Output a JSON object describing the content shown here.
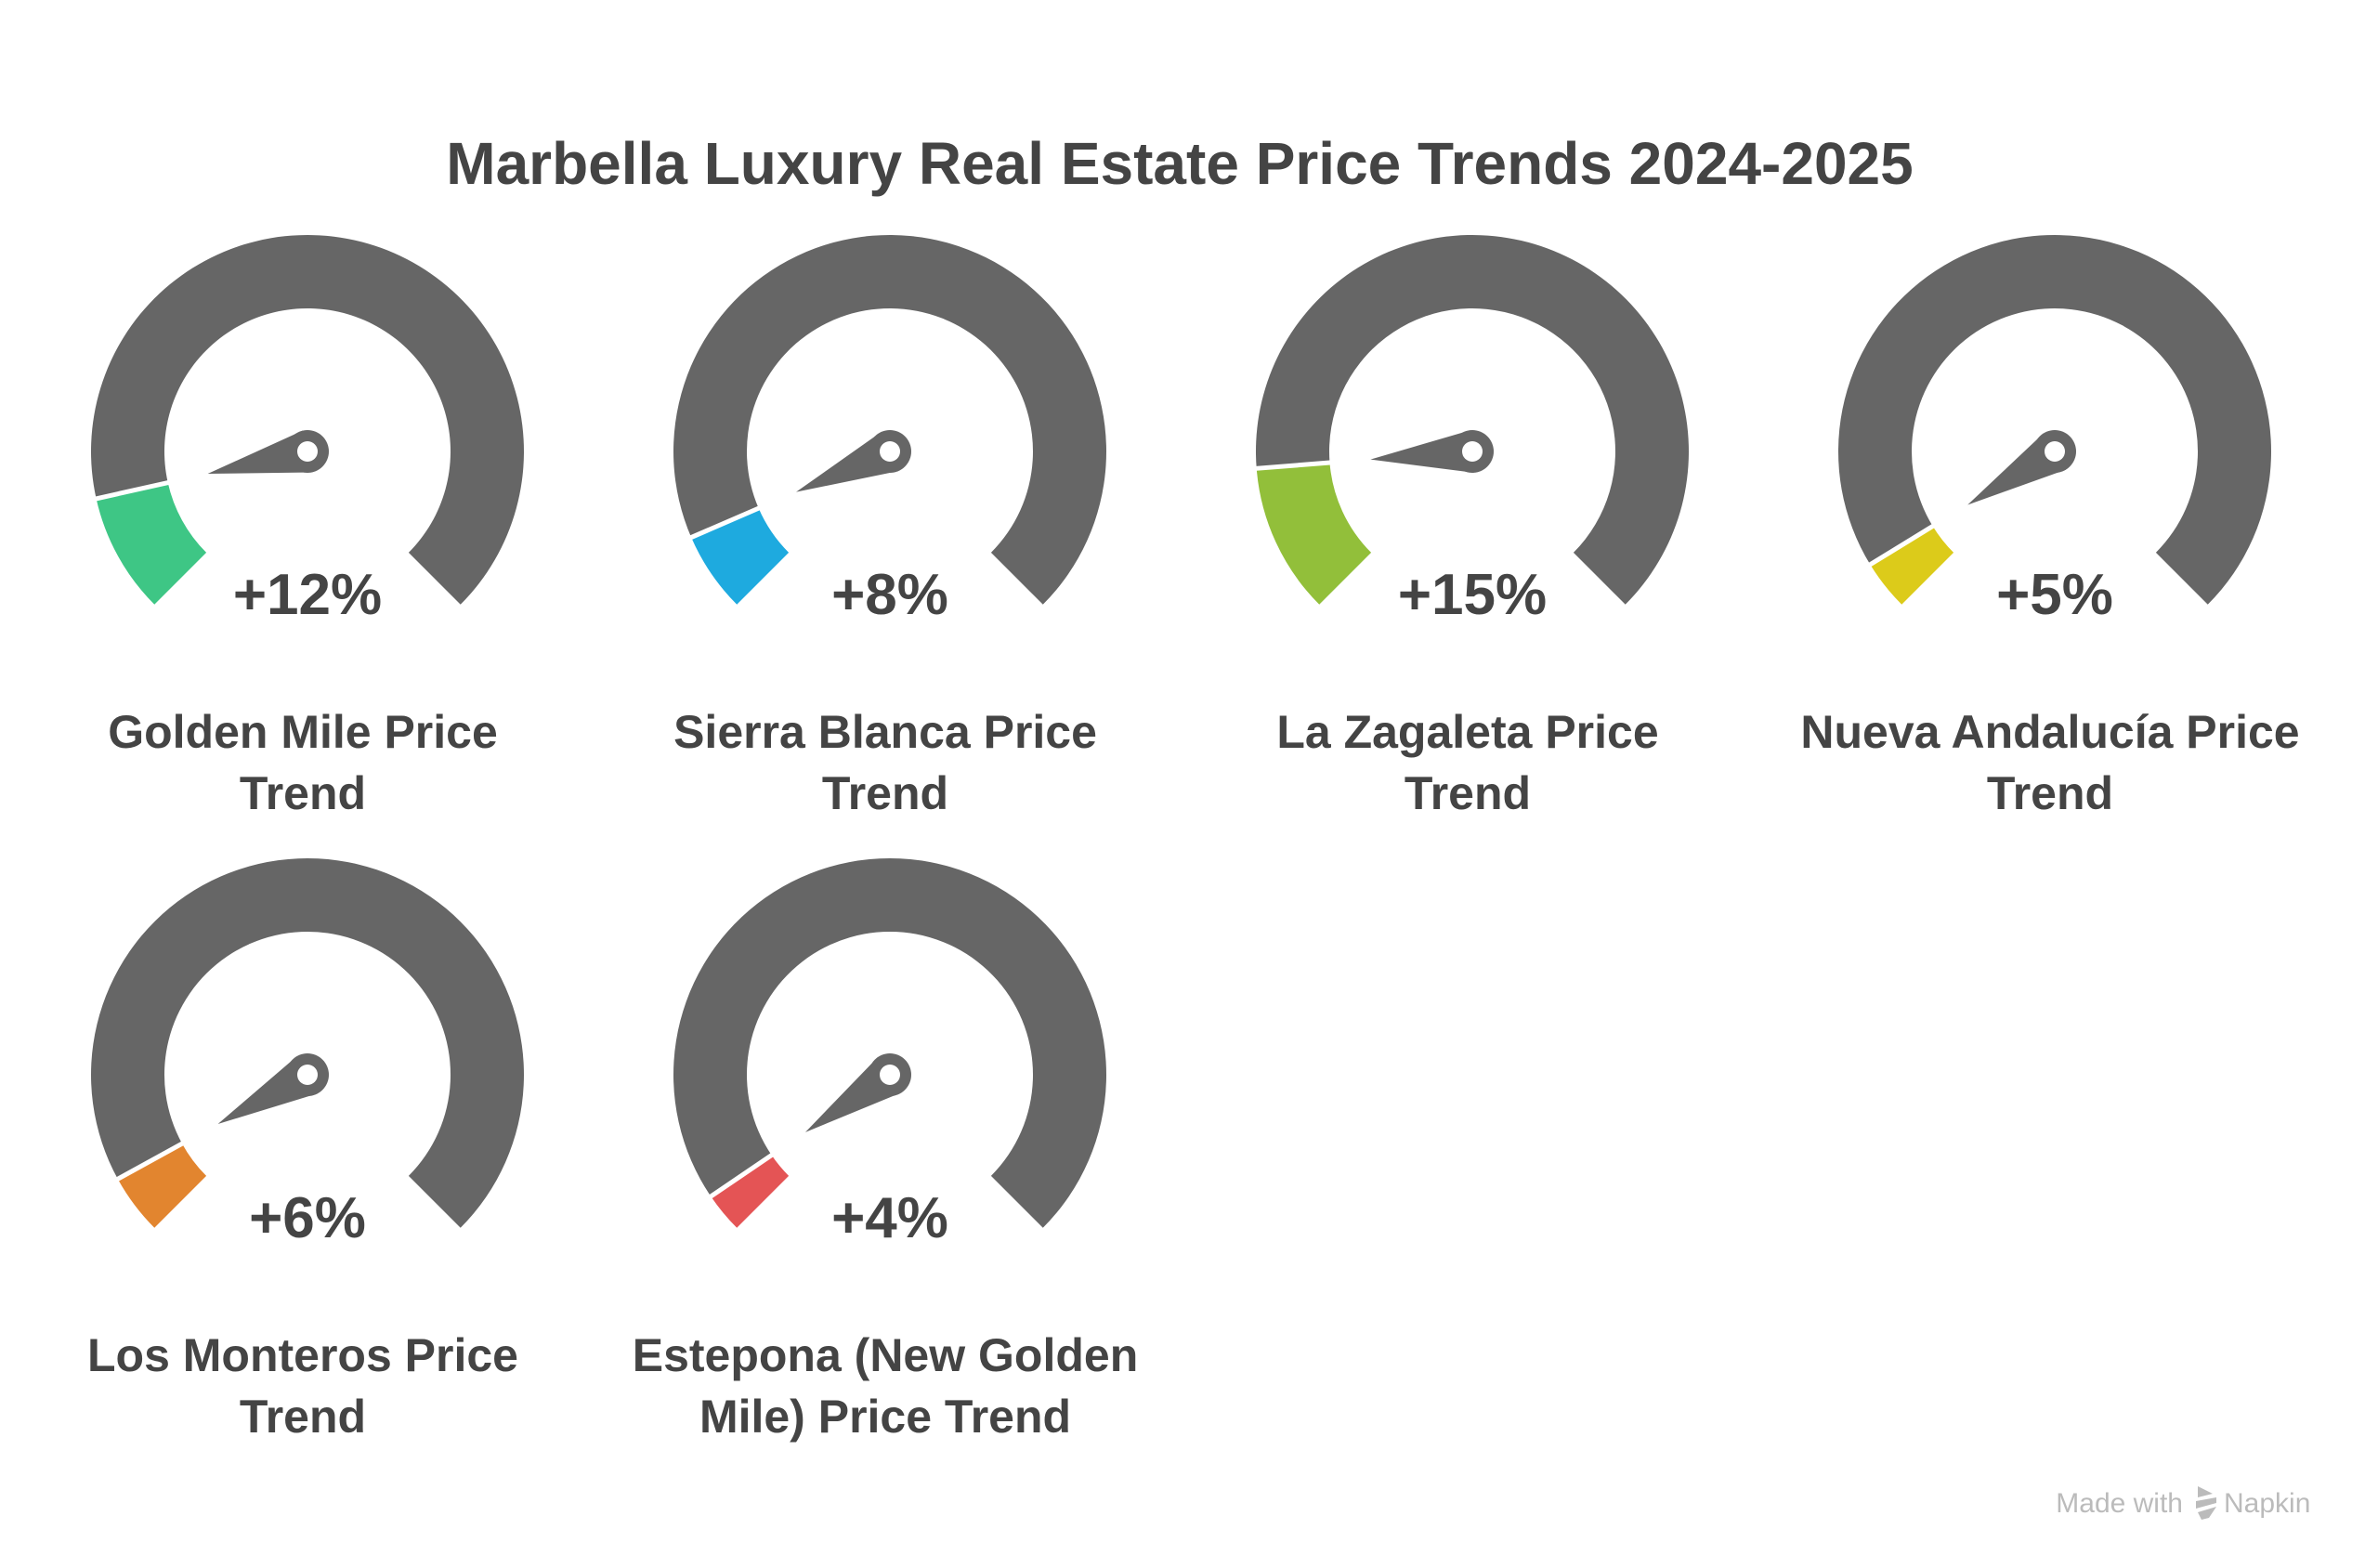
{
  "chart_data": {
    "type": "gauge",
    "title": "Marbella Luxury Real Estate Price Trends 2024-2025",
    "scale": [
      0,
      100
    ],
    "track_color": "#666666",
    "gauges": [
      {
        "label_lines": [
          "Golden Mile Price",
          "Trend"
        ],
        "value": 12,
        "display": "+12%",
        "color": "#3EC685"
      },
      {
        "label_lines": [
          "Sierra Blanca Price",
          "Trend"
        ],
        "value": 8,
        "display": "+8%",
        "color": "#1EAADF"
      },
      {
        "label_lines": [
          "La Zagaleta Price",
          "Trend"
        ],
        "value": 15,
        "display": "+15%",
        "color": "#92BF3A"
      },
      {
        "label_lines": [
          "Nueva Andalucía Price",
          "Trend"
        ],
        "value": 5,
        "display": "+5%",
        "color": "#DCCB1A"
      },
      {
        "label_lines": [
          "Los Monteros Price",
          "Trend"
        ],
        "value": 6,
        "display": "+6%",
        "color": "#E2852F"
      },
      {
        "label_lines": [
          "Estepona (New Golden",
          "Mile) Price Trend"
        ],
        "value": 4,
        "display": "+4%",
        "color": "#E45455"
      }
    ]
  },
  "footer": {
    "made_with": "Made with",
    "brand": "Napkin"
  }
}
